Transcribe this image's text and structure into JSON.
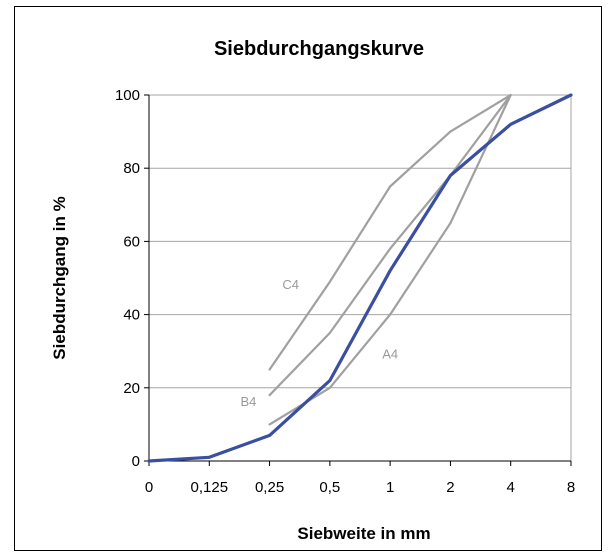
{
  "chart_data": {
    "type": "line",
    "title": "Siebdurchgangskurve",
    "xlabel": "Siebweite in mm",
    "ylabel": "Siebdurchgang in %",
    "categories": [
      "0",
      "0,125",
      "0,25",
      "0,5",
      "1",
      "2",
      "4",
      "8"
    ],
    "ylim": [
      0,
      100
    ],
    "yticks": [
      0,
      20,
      40,
      60,
      80,
      100
    ],
    "grid": "horizontal",
    "legend": "none",
    "series": [
      {
        "name": "",
        "color": "#3a4fa0",
        "width": "bold",
        "values": [
          0,
          1,
          7,
          22,
          52,
          78,
          92,
          100
        ]
      },
      {
        "name": "C4",
        "color": "#a0a0a0",
        "points": [
          [
            "0,25",
            25
          ],
          [
            "0,5",
            49
          ],
          [
            "1",
            75
          ],
          [
            "2",
            90
          ],
          [
            "4",
            100
          ]
        ]
      },
      {
        "name": "B4",
        "color": "#a0a0a0",
        "points": [
          [
            "0,25",
            18
          ],
          [
            "0,5",
            35
          ],
          [
            "1",
            58
          ],
          [
            "2",
            78
          ],
          [
            "4",
            100
          ]
        ]
      },
      {
        "name": "A4",
        "color": "#a0a0a0",
        "points": [
          [
            "0,25",
            10
          ],
          [
            "0,5",
            20
          ],
          [
            "1",
            40
          ],
          [
            "2",
            65
          ],
          [
            "4",
            100
          ]
        ]
      }
    ]
  }
}
